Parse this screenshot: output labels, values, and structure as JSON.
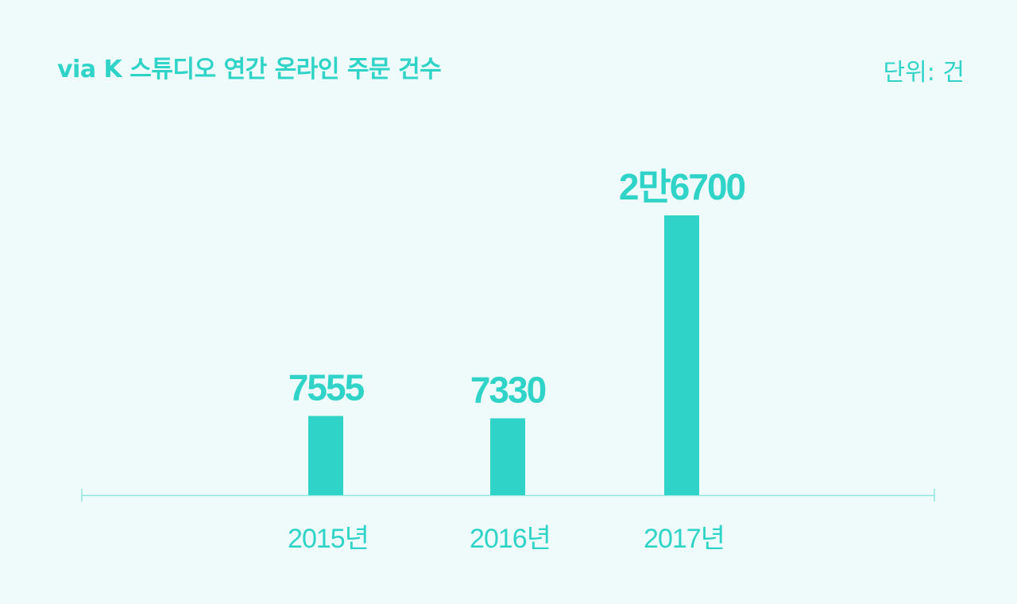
{
  "title": "via K 스튜디오 연간 온라인 주문 건수",
  "unit_label": "단위: 건",
  "colors": {
    "background": "#effbfb",
    "accent": "#2fd3c7",
    "axis": "#8fe6df"
  },
  "chart_data": {
    "type": "bar",
    "title": "via K 스튜디오 연간 온라인 주문 건수",
    "xlabel": "",
    "ylabel": "",
    "categories": [
      "2015년",
      "2016년",
      "2017년"
    ],
    "values": [
      7555,
      7330,
      26700
    ],
    "value_labels": [
      "7555",
      "7330",
      "2만6700"
    ],
    "ylim": [
      0,
      26700
    ],
    "grid": false,
    "legend": "none"
  }
}
